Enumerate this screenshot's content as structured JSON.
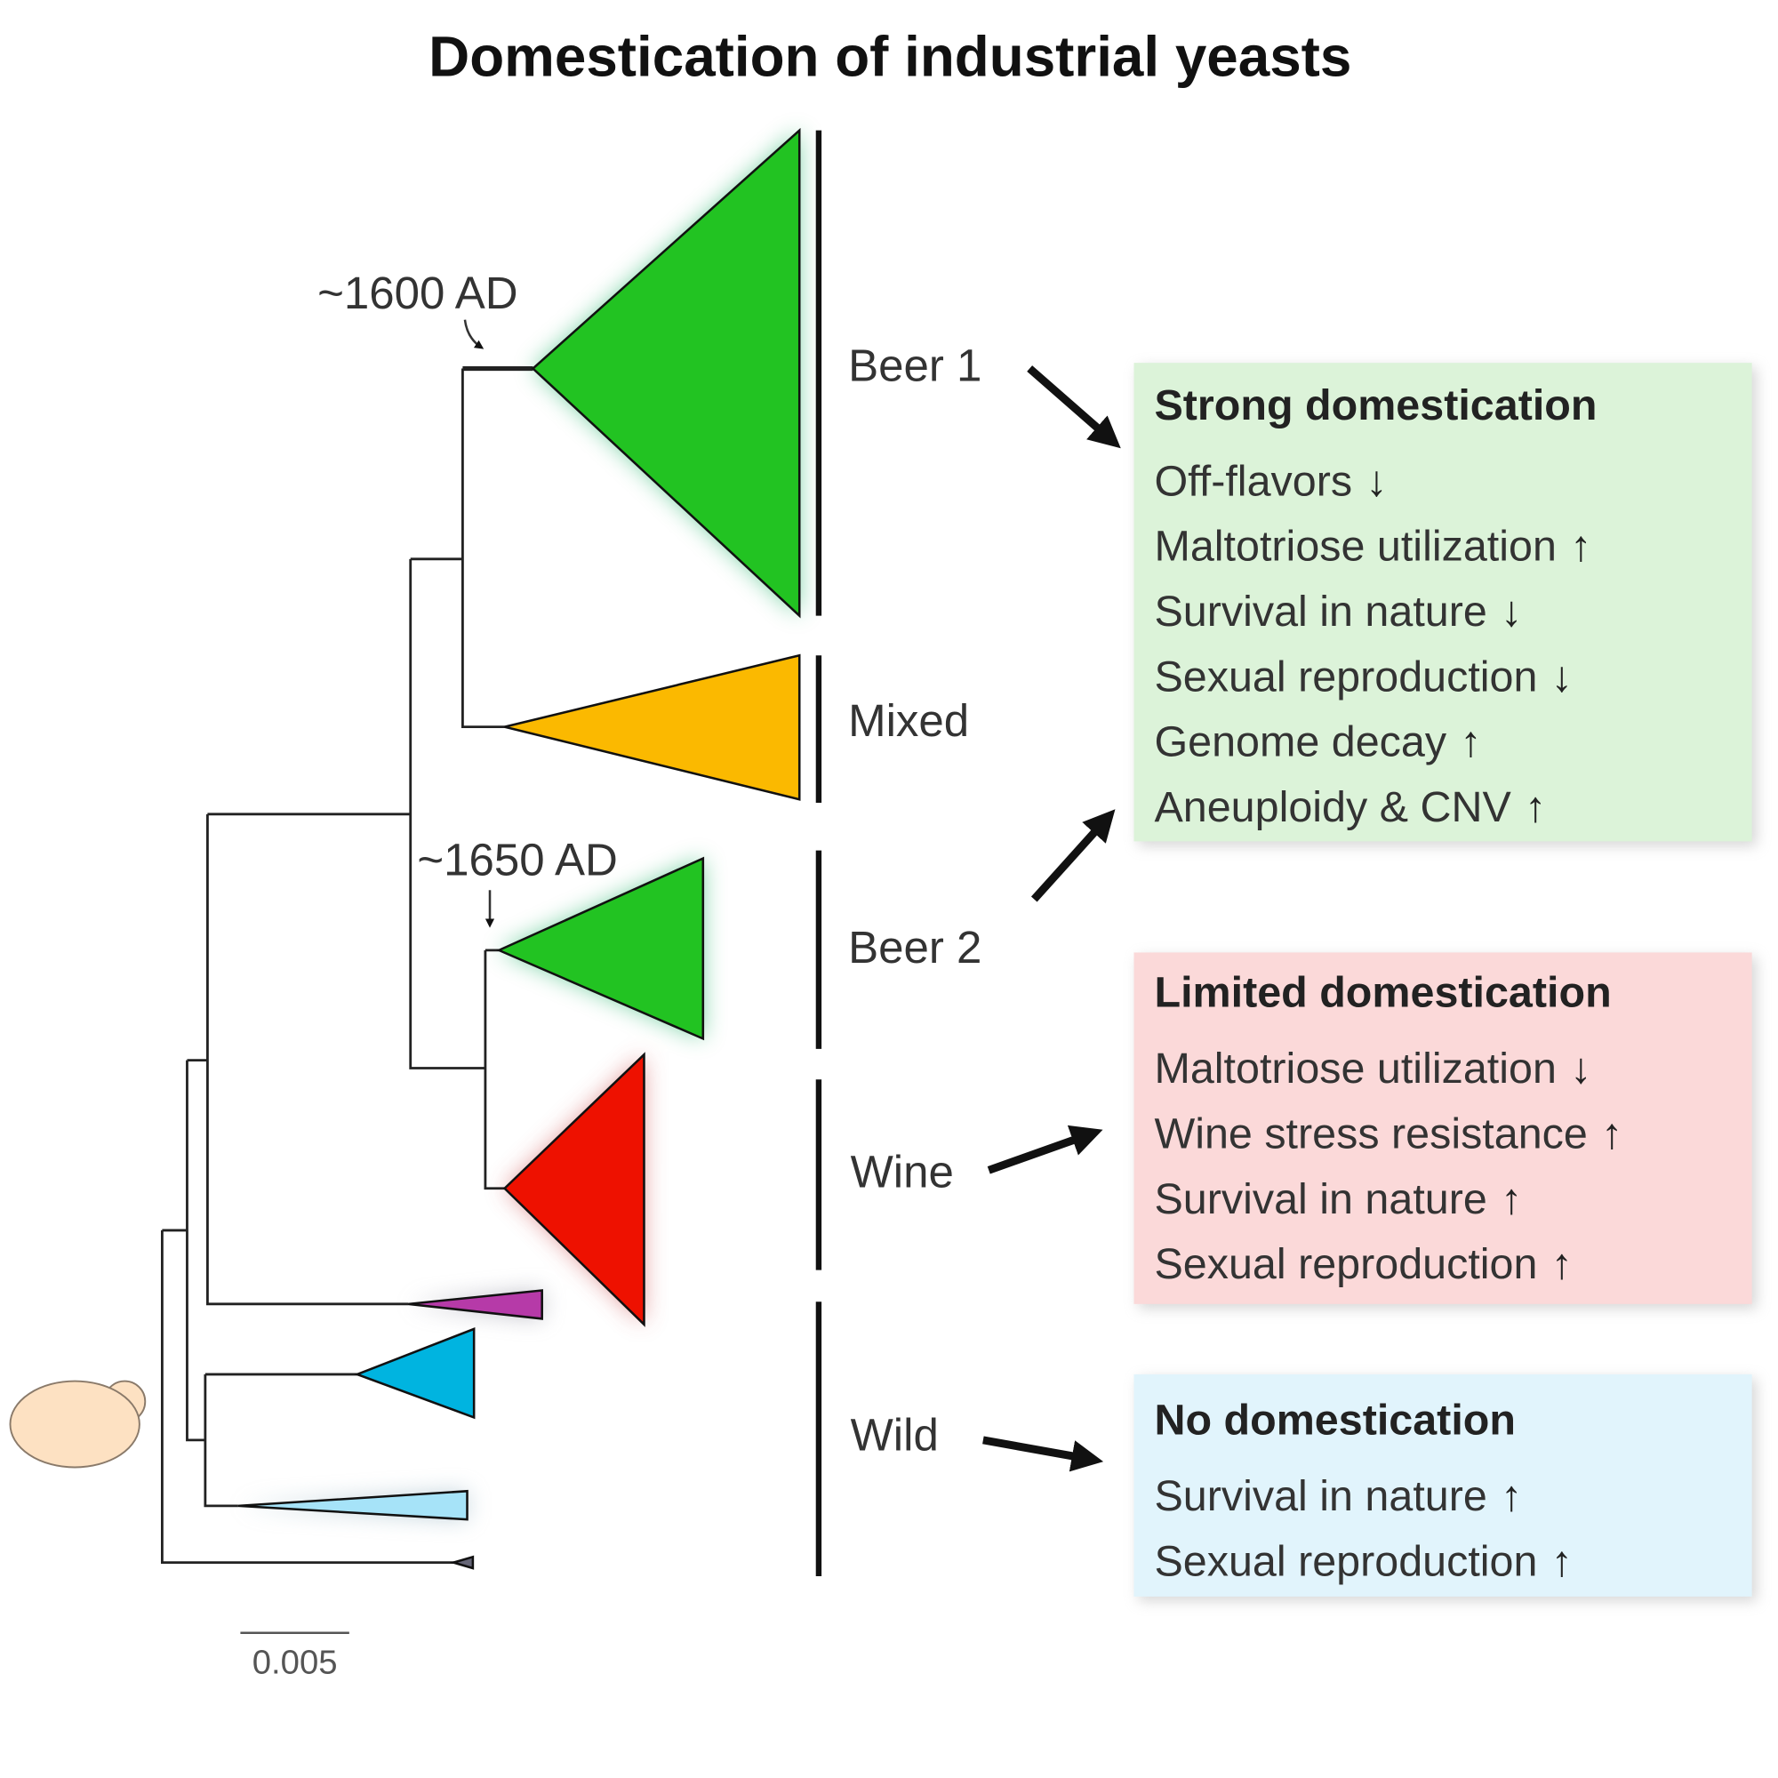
{
  "title": "Domestication of industrial yeasts",
  "tree": {
    "date_labels": [
      "~1600 AD",
      "~1650 AD"
    ],
    "scale_bar": "0.005",
    "clades": [
      {
        "name": "Beer 1",
        "color": "#22c322"
      },
      {
        "name": "Mixed",
        "color": "#fbb900"
      },
      {
        "name": "Beer 2",
        "color": "#22c322"
      },
      {
        "name": "Wine",
        "color": "#ee1100"
      },
      {
        "name": "Wild",
        "color": "#00b4e0"
      }
    ],
    "other_clade_colors": {
      "purple": "#b63aa8",
      "light_blue": "#a6e3f8"
    }
  },
  "boxes": [
    {
      "id": "strong",
      "title": "Strong domestication",
      "bg": "#dcf3d9",
      "items": [
        {
          "text": "Off-flavors",
          "dir": "down"
        },
        {
          "text": "Maltotriose utilization",
          "dir": "up"
        },
        {
          "text": "Survival in nature",
          "dir": "down"
        },
        {
          "text": "Sexual reproduction",
          "dir": "down"
        },
        {
          "text": "Genome decay",
          "dir": "up"
        },
        {
          "text": "Aneuploidy & CNV",
          "dir": "up"
        }
      ]
    },
    {
      "id": "limited",
      "title": "Limited domestication",
      "bg": "#fbd9d9",
      "items": [
        {
          "text": "Maltotriose utilization",
          "dir": "down"
        },
        {
          "text": "Wine stress resistance",
          "dir": "up"
        },
        {
          "text": "Survival in nature",
          "dir": "up"
        },
        {
          "text": "Sexual reproduction",
          "dir": "up"
        }
      ]
    },
    {
      "id": "none",
      "title": "No domestication",
      "bg": "#e1f4fc",
      "items": [
        {
          "text": "Survival in nature",
          "dir": "up"
        },
        {
          "text": "Sexual reproduction",
          "dir": "up"
        }
      ]
    }
  ]
}
